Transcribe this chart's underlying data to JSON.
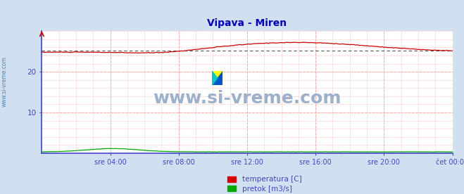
{
  "title": "Vipava - Miren",
  "title_color": "#0000cc",
  "background_color": "#d0e0f0",
  "plot_bg_color": "#ffffff",
  "grid_color_major": "#ffaaaa",
  "grid_color_minor": "#ffcccc",
  "x_tick_labels": [
    "sre 04:00",
    "sre 08:00",
    "sre 12:00",
    "sre 16:00",
    "sre 20:00",
    "čet 00:00"
  ],
  "x_tick_positions": [
    48,
    96,
    144,
    192,
    240,
    288
  ],
  "y_ticks": [
    10,
    20
  ],
  "ylim": [
    0,
    30
  ],
  "xlim": [
    0,
    288
  ],
  "watermark": "www.si-vreme.com",
  "watermark_color": "#9bb0cc",
  "legend": [
    {
      "label": "temperatura [C]",
      "color": "#dd0000"
    },
    {
      "label": "pretok [m3/s]",
      "color": "#00aa00"
    }
  ],
  "temp_color": "#cc0000",
  "flow_color": "#00aa00",
  "avg_line_color": "#555555",
  "spine_color": "#4444cc",
  "tick_label_color": "#4444cc",
  "watermark_left": "www.si-vreme.com",
  "watermark_left_color": "#4488bb"
}
